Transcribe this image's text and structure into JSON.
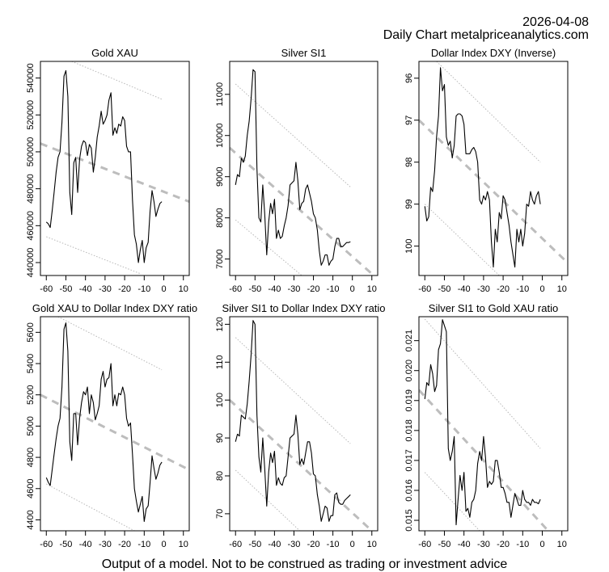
{
  "header": {
    "date": "2026-04-08",
    "subtitle": "Daily Chart metalpriceanalytics.com"
  },
  "footer": {
    "disclaimer": "Output of a model. Not to be construed as trading or investment advice"
  },
  "chart_data": [
    {
      "type": "line",
      "title": "Gold XAU",
      "xlim": [
        -63,
        13
      ],
      "ylim": [
        433000,
        549000
      ],
      "inverse": false,
      "xticks": [
        -60,
        -50,
        -40,
        -30,
        -20,
        -10,
        0,
        10
      ],
      "yticks": [
        440000,
        460000,
        480000,
        500000,
        520000,
        540000
      ],
      "ytick_labels": [
        "440000",
        "460000",
        "480000",
        "500000",
        "520000",
        "540000"
      ],
      "x": [
        -60,
        -59,
        -58,
        -57,
        -56,
        -55,
        -54,
        -53,
        -52,
        -51,
        -50,
        -49,
        -48,
        -47,
        -46,
        -45,
        -44,
        -43,
        -42,
        -41,
        -40,
        -39,
        -38,
        -37,
        -36,
        -35,
        -34,
        -33,
        -32,
        -31,
        -30,
        -29,
        -28,
        -27,
        -26,
        -25,
        -24,
        -23,
        -22,
        -21,
        -20,
        -19,
        -18,
        -17,
        -16,
        -15,
        -14,
        -13,
        -12,
        -11,
        -10,
        -9,
        -8,
        -7,
        -6,
        -5,
        -4,
        -3,
        -2,
        -1
      ],
      "values": [
        462000,
        461000,
        459000,
        468000,
        478000,
        489000,
        497000,
        500000,
        516000,
        541000,
        544000,
        530000,
        478000,
        466000,
        494000,
        497000,
        478000,
        496000,
        503000,
        506000,
        505000,
        498000,
        504000,
        502000,
        489000,
        497000,
        508000,
        514000,
        522000,
        515000,
        517000,
        520000,
        528000,
        532000,
        509000,
        513000,
        510000,
        515000,
        514000,
        519000,
        517000,
        503000,
        500000,
        500000,
        474000,
        455000,
        450000,
        440000,
        447000,
        452000,
        440000,
        448000,
        451000,
        468000,
        479000,
        473000,
        465000,
        469000,
        472000,
        473000
      ],
      "trend": {
        "x": [
          -63,
          13
        ],
        "y": [
          504500,
          473000
        ]
      },
      "upper_band": {
        "x": [
          -47,
          -1
        ],
        "y": [
          549000,
          528500
        ]
      },
      "lower_band": {
        "x": [
          -60,
          -12
        ],
        "y": [
          454000,
          434000
        ]
      }
    },
    {
      "type": "line",
      "title": "Silver SI1",
      "xlim": [
        -63,
        13
      ],
      "ylim": [
        6600,
        11800
      ],
      "inverse": false,
      "xticks": [
        -60,
        -50,
        -40,
        -30,
        -20,
        -10,
        0,
        10
      ],
      "yticks": [
        7000,
        8000,
        9000,
        10000,
        11000
      ],
      "ytick_labels": [
        "7000",
        "8000",
        "9000",
        "10000",
        "11000"
      ],
      "x": [
        -60,
        -59,
        -58,
        -57,
        -56,
        -55,
        -54,
        -53,
        -52,
        -51,
        -50,
        -49,
        -48,
        -47,
        -46,
        -45,
        -44,
        -43,
        -42,
        -41,
        -40,
        -39,
        -38,
        -37,
        -36,
        -35,
        -34,
        -33,
        -32,
        -31,
        -30,
        -29,
        -28,
        -27,
        -26,
        -25,
        -24,
        -23,
        -22,
        -21,
        -20,
        -19,
        -18,
        -17,
        -16,
        -15,
        -14,
        -13,
        -12,
        -11,
        -10,
        -9,
        -8,
        -7,
        -6,
        -5,
        -4,
        -3,
        -2,
        -1
      ],
      "values": [
        8800,
        9050,
        9000,
        9450,
        9350,
        9500,
        10000,
        10350,
        10900,
        11600,
        11550,
        9200,
        8000,
        7900,
        8800,
        8100,
        7100,
        7900,
        8350,
        8100,
        8450,
        7500,
        7700,
        7500,
        7550,
        7800,
        8000,
        8300,
        8800,
        8850,
        8900,
        9350,
        8900,
        8200,
        8350,
        8400,
        8700,
        8800,
        8600,
        8400,
        8100,
        8000,
        7700,
        7200,
        6850,
        6950,
        7100,
        7100,
        6850,
        6950,
        7000,
        7300,
        7500,
        7500,
        7300,
        7300,
        7350,
        7400,
        7400,
        7420
      ],
      "trend": {
        "x": [
          -63,
          11
        ],
        "y": [
          9700,
          6600
        ]
      },
      "upper_band": {
        "x": [
          -60,
          -1
        ],
        "y": [
          11250,
          8750
        ]
      },
      "lower_band": {
        "x": [
          -60,
          -26
        ],
        "y": [
          7950,
          6600
        ]
      }
    },
    {
      "type": "line",
      "title": "Dollar Index DXY (Inverse)",
      "xlim": [
        -63,
        13
      ],
      "ylim": [
        100.7,
        95.6
      ],
      "inverse": true,
      "xticks": [
        -60,
        -50,
        -40,
        -30,
        -20,
        -10,
        0,
        10
      ],
      "yticks": [
        96,
        97,
        98,
        99,
        100
      ],
      "ytick_labels": [
        "96",
        "97",
        "98",
        "99",
        "100"
      ],
      "x": [
        -60,
        -59,
        -58,
        -57,
        -56,
        -55,
        -54,
        -53,
        -52,
        -51,
        -50,
        -49,
        -48,
        -47,
        -46,
        -45,
        -44,
        -43,
        -42,
        -41,
        -40,
        -39,
        -38,
        -37,
        -36,
        -35,
        -34,
        -33,
        -32,
        -31,
        -30,
        -29,
        -28,
        -27,
        -26,
        -25,
        -24,
        -23,
        -22,
        -21,
        -20,
        -19,
        -18,
        -17,
        -16,
        -15,
        -14,
        -13,
        -12,
        -11,
        -10,
        -9,
        -8,
        -7,
        -6,
        -5,
        -4,
        -3,
        -2,
        -1
      ],
      "values": [
        99.05,
        99.4,
        99.3,
        98.6,
        98.7,
        98.2,
        97.4,
        96.9,
        95.75,
        96.3,
        96.15,
        97.4,
        97.6,
        97.5,
        97.9,
        97.6,
        96.9,
        96.85,
        96.85,
        96.9,
        97.1,
        97.8,
        97.8,
        97.8,
        97.7,
        97.65,
        97.75,
        98.0,
        98.9,
        99.0,
        98.8,
        98.9,
        98.7,
        98.9,
        99.9,
        100.5,
        99.6,
        99.9,
        99.2,
        99.35,
        98.8,
        98.9,
        99.2,
        99.5,
        99.9,
        100.2,
        100.5,
        99.6,
        99.9,
        99.6,
        100.0,
        99.7,
        99.0,
        99.05,
        98.7,
        98.9,
        99.0,
        98.8,
        98.7,
        99.0
      ],
      "trend": {
        "x": [
          -63,
          13
        ],
        "y": [
          97.0,
          100.4
        ]
      },
      "upper_band": {
        "x": [
          -54,
          -1
        ],
        "y": [
          95.6,
          98.0
        ]
      },
      "lower_band": {
        "x": [
          -60,
          -22
        ],
        "y": [
          99.0,
          100.7
        ]
      }
    },
    {
      "type": "line",
      "title": "Gold XAU to Dollar Index DXY ratio",
      "xlim": [
        -63,
        13
      ],
      "ylim": [
        4330,
        5700
      ],
      "inverse": false,
      "xticks": [
        -60,
        -50,
        -40,
        -30,
        -20,
        -10,
        0,
        10
      ],
      "yticks": [
        4400,
        4600,
        4800,
        5000,
        5200,
        5400,
        5600
      ],
      "ytick_labels": [
        "4400",
        "4600",
        "4800",
        "5000",
        "5200",
        "5400",
        "5600"
      ],
      "x": [
        -60,
        -59,
        -58,
        -57,
        -56,
        -55,
        -54,
        -53,
        -52,
        -51,
        -50,
        -49,
        -48,
        -47,
        -46,
        -45,
        -44,
        -43,
        -42,
        -41,
        -40,
        -39,
        -38,
        -37,
        -36,
        -35,
        -34,
        -33,
        -32,
        -31,
        -30,
        -29,
        -28,
        -27,
        -26,
        -25,
        -24,
        -23,
        -22,
        -21,
        -20,
        -19,
        -18,
        -17,
        -16,
        -15,
        -14,
        -13,
        -12,
        -11,
        -10,
        -9,
        -8,
        -7,
        -6,
        -5,
        -4,
        -3,
        -2,
        -1
      ],
      "values": [
        4670,
        4640,
        4620,
        4720,
        4820,
        4920,
        5000,
        5050,
        5250,
        5620,
        5660,
        5480,
        4900,
        4780,
        5080,
        5080,
        4880,
        5050,
        5150,
        5220,
        5200,
        5250,
        5080,
        5200,
        5150,
        5040,
        5080,
        5130,
        5300,
        5350,
        5250,
        5300,
        5310,
        5400,
        5130,
        5200,
        5130,
        5210,
        5200,
        5250,
        5200,
        5050,
        5000,
        5020,
        4820,
        4600,
        4520,
        4450,
        4500,
        4550,
        4390,
        4470,
        4490,
        4640,
        4810,
        4730,
        4660,
        4700,
        4750,
        4770
      ],
      "trend": {
        "x": [
          -63,
          13
        ],
        "y": [
          5200,
          4720
        ]
      },
      "upper_band": {
        "x": [
          -54,
          -1
        ],
        "y": [
          5700,
          5360
        ]
      },
      "lower_band": {
        "x": [
          -60,
          -15
        ],
        "y": [
          4630,
          4330
        ]
      }
    },
    {
      "type": "line",
      "title": "Silver SI1 to Dollar Index DXY ratio",
      "xlim": [
        -63,
        13
      ],
      "ylim": [
        65.5,
        122
      ],
      "inverse": false,
      "xticks": [
        -60,
        -50,
        -40,
        -30,
        -20,
        -10,
        0,
        10
      ],
      "yticks": [
        70,
        80,
        90,
        100,
        110,
        120
      ],
      "ytick_labels": [
        "70",
        "80",
        "90",
        "100",
        "110",
        "120"
      ],
      "x": [
        -60,
        -59,
        -58,
        -57,
        -56,
        -55,
        -54,
        -53,
        -52,
        -51,
        -50,
        -49,
        -48,
        -47,
        -46,
        -45,
        -44,
        -43,
        -42,
        -41,
        -40,
        -39,
        -38,
        -37,
        -36,
        -35,
        -34,
        -33,
        -32,
        -31,
        -30,
        -29,
        -28,
        -27,
        -26,
        -25,
        -24,
        -23,
        -22,
        -21,
        -20,
        -19,
        -18,
        -17,
        -16,
        -15,
        -14,
        -13,
        -12,
        -11,
        -10,
        -9,
        -8,
        -7,
        -6,
        -5,
        -4,
        -3,
        -2,
        -1
      ],
      "values": [
        89,
        91,
        90.5,
        96,
        95.5,
        95,
        99,
        105,
        112,
        121,
        120,
        96,
        85,
        81,
        90,
        82,
        72,
        81,
        86,
        83.5,
        86.5,
        77.5,
        79.5,
        78,
        77.5,
        79.5,
        80,
        85,
        90,
        90.5,
        91,
        96,
        91,
        83,
        84.5,
        83,
        86,
        89,
        89,
        86,
        80.5,
        80,
        75,
        72,
        68,
        70,
        72,
        71.5,
        68,
        69.5,
        69.5,
        75,
        75.5,
        73,
        72.5,
        72.5,
        73.5,
        74,
        74.5,
        75
      ],
      "trend": {
        "x": [
          -63,
          10
        ],
        "y": [
          100,
          65.5
        ]
      },
      "upper_band": {
        "x": [
          -60,
          -1
        ],
        "y": [
          116.5,
          88.5
        ]
      },
      "lower_band": {
        "x": [
          -60,
          -27
        ],
        "y": [
          81.5,
          65.5
        ]
      }
    },
    {
      "type": "line",
      "title": "Silver SI1 to Gold XAU ratio",
      "xlim": [
        -63,
        13
      ],
      "ylim": [
        0.01465,
        0.0218
      ],
      "inverse": false,
      "xticks": [
        -60,
        -50,
        -40,
        -30,
        -20,
        -10,
        0,
        10
      ],
      "yticks": [
        0.015,
        0.016,
        0.017,
        0.018,
        0.019,
        0.02,
        0.021
      ],
      "ytick_labels": [
        "0.015",
        "0.016",
        "0.017",
        "0.018",
        "0.019",
        "0.020",
        "0.021"
      ],
      "x": [
        -60,
        -59,
        -58,
        -57,
        -56,
        -55,
        -54,
        -53,
        -52,
        -51,
        -50,
        -49,
        -48,
        -47,
        -46,
        -45,
        -44,
        -43,
        -42,
        -41,
        -40,
        -39,
        -38,
        -37,
        -36,
        -35,
        -34,
        -33,
        -32,
        -31,
        -30,
        -29,
        -28,
        -27,
        -26,
        -25,
        -24,
        -23,
        -22,
        -21,
        -20,
        -19,
        -18,
        -17,
        -16,
        -15,
        -14,
        -13,
        -12,
        -11,
        -10,
        -9,
        -8,
        -7,
        -6,
        -5,
        -4,
        -3,
        -2,
        -1
      ],
      "values": [
        0.01905,
        0.0196,
        0.0195,
        0.0202,
        0.0199,
        0.0193,
        0.0195,
        0.0207,
        0.0209,
        0.0217,
        0.0215,
        0.0213,
        0.0174,
        0.017,
        0.0173,
        0.0178,
        0.01485,
        0.0157,
        0.0165,
        0.016,
        0.0166,
        0.0153,
        0.0154,
        0.0151,
        0.0156,
        0.0157,
        0.016,
        0.0169,
        0.0173,
        0.017,
        0.0178,
        0.0171,
        0.0161,
        0.0163,
        0.0162,
        0.0163,
        0.017,
        0.017,
        0.0166,
        0.0161,
        0.0161,
        0.0159,
        0.0156,
        0.0156,
        0.0151,
        0.0155,
        0.0159,
        0.0157,
        0.0155,
        0.0155,
        0.016,
        0.0157,
        0.0156,
        0.0156,
        0.0155,
        0.0157,
        0.0156,
        0.0156,
        0.01555,
        0.0157
      ],
      "trend": {
        "x": [
          -63,
          3
        ],
        "y": [
          0.01935,
          0.01465
        ]
      },
      "upper_band": {
        "x": [
          -60,
          -1
        ],
        "y": [
          0.02172,
          0.0174
        ]
      },
      "lower_band": {
        "x": [
          -60,
          -32
        ],
        "y": [
          0.0166,
          0.01465
        ]
      }
    }
  ]
}
